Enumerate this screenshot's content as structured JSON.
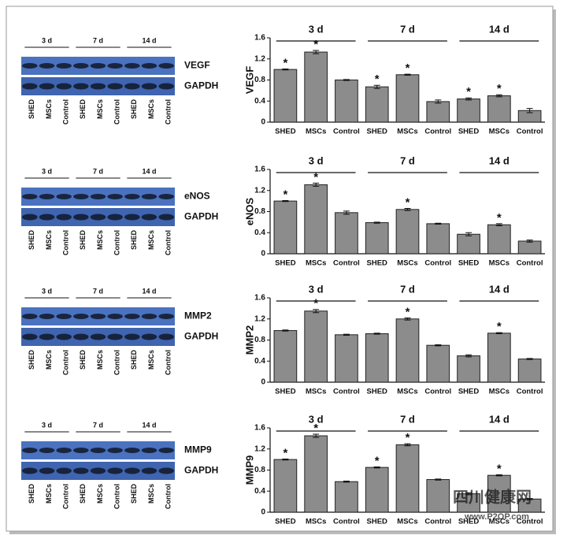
{
  "chart_data": [
    {
      "type": "bar",
      "ylabel": "VEGF",
      "color": "#8c8c8c",
      "categories": [
        "SHED",
        "MSCs",
        "Control",
        "SHED",
        "MSCs",
        "Control",
        "SHED",
        "MSCs",
        "Control"
      ],
      "groups": [
        "3 d",
        "7 d",
        "14 d"
      ],
      "values": [
        1.0,
        1.33,
        0.8,
        0.67,
        0.9,
        0.39,
        0.44,
        0.5,
        0.22
      ],
      "errors": [
        0.01,
        0.03,
        0.01,
        0.03,
        0.01,
        0.03,
        0.02,
        0.02,
        0.04
      ],
      "significance": [
        "*",
        "*",
        null,
        "*",
        "*",
        null,
        "*",
        "*",
        null
      ],
      "ylim": [
        0,
        1.6
      ],
      "yticks": [
        0,
        0.4,
        0.8,
        1.2,
        1.6
      ]
    },
    {
      "type": "bar",
      "ylabel": "eNOS",
      "color": "#8c8c8c",
      "categories": [
        "SHED",
        "MSCs",
        "Control",
        "SHED",
        "MSCs",
        "Control",
        "SHED",
        "MSCs",
        "Control"
      ],
      "groups": [
        "3 d",
        "7 d",
        "14 d"
      ],
      "values": [
        1.0,
        1.31,
        0.78,
        0.59,
        0.84,
        0.57,
        0.37,
        0.55,
        0.24
      ],
      "errors": [
        0.01,
        0.03,
        0.03,
        0.01,
        0.02,
        0.01,
        0.03,
        0.02,
        0.02
      ],
      "significance": [
        "*",
        "*",
        null,
        null,
        "*",
        null,
        null,
        "*",
        null
      ],
      "ylim": [
        0,
        1.6
      ],
      "yticks": [
        0,
        0.4,
        0.8,
        1.2,
        1.6
      ]
    },
    {
      "type": "bar",
      "ylabel": "MMP2",
      "color": "#8c8c8c",
      "categories": [
        "SHED",
        "MSCs",
        "Control",
        "SHED",
        "MSCs",
        "Control",
        "SHED",
        "MSCs",
        "Control"
      ],
      "groups": [
        "3 d",
        "7 d",
        "14 d"
      ],
      "values": [
        0.98,
        1.35,
        0.9,
        0.92,
        1.2,
        0.7,
        0.5,
        0.93,
        0.44
      ],
      "errors": [
        0.01,
        0.03,
        0.01,
        0.01,
        0.02,
        0.01,
        0.02,
        0.01,
        0.01
      ],
      "significance": [
        null,
        "*",
        null,
        null,
        "*",
        null,
        null,
        "*",
        null
      ],
      "ylim": [
        0,
        1.6
      ],
      "yticks": [
        0,
        0.4,
        0.8,
        1.2,
        1.6
      ]
    },
    {
      "type": "bar",
      "ylabel": "MMP9",
      "color": "#8c8c8c",
      "categories": [
        "SHED",
        "MSCs",
        "Control",
        "SHED",
        "MSCs",
        "Control",
        "SHED",
        "MSCs",
        "Control"
      ],
      "groups": [
        "3 d",
        "7 d",
        "14 d"
      ],
      "values": [
        1.0,
        1.45,
        0.58,
        0.85,
        1.28,
        0.62,
        0.35,
        0.7,
        0.25
      ],
      "errors": [
        0.01,
        0.03,
        0.01,
        0.01,
        0.02,
        0.01,
        0.02,
        0.01,
        0.01
      ],
      "significance": [
        "*",
        "*",
        null,
        "*",
        "*",
        null,
        null,
        "*",
        null
      ],
      "ylim": [
        0,
        1.6
      ],
      "yticks": [
        0,
        0.4,
        0.8,
        1.2,
        1.6
      ]
    }
  ],
  "blots": [
    {
      "groups": [
        "3 d",
        "7 d",
        "14 d"
      ],
      "bands": [
        "VEGF",
        "GAPDH"
      ],
      "lanes": [
        "SHED",
        "MSCs",
        "Control",
        "SHED",
        "MSCs",
        "Control",
        "SHED",
        "MSCs",
        "Control"
      ]
    },
    {
      "groups": [
        "3 d",
        "7 d",
        "14 d"
      ],
      "bands": [
        "eNOS",
        "GAPDH"
      ],
      "lanes": [
        "SHED",
        "MSCs",
        "Control",
        "SHED",
        "MSCs",
        "Control",
        "SHED",
        "MSCs",
        "Control"
      ]
    },
    {
      "groups": [
        "3 d",
        "7 d",
        "14 d"
      ],
      "bands": [
        "MMP2",
        "GAPDH"
      ],
      "lanes": [
        "SHED",
        "MSCs",
        "Control",
        "SHED",
        "MSCs",
        "Control",
        "SHED",
        "MSCs",
        "Control"
      ]
    },
    {
      "groups": [
        "3 d",
        "7 d",
        "14 d"
      ],
      "bands": [
        "MMP9",
        "GAPDH"
      ],
      "lanes": [
        "SHED",
        "MSCs",
        "Control",
        "SHED",
        "MSCs",
        "Control",
        "SHED",
        "MSCs",
        "Control"
      ]
    }
  ],
  "watermark": {
    "name": "四川健康网",
    "url": "www.P2OP.com"
  }
}
